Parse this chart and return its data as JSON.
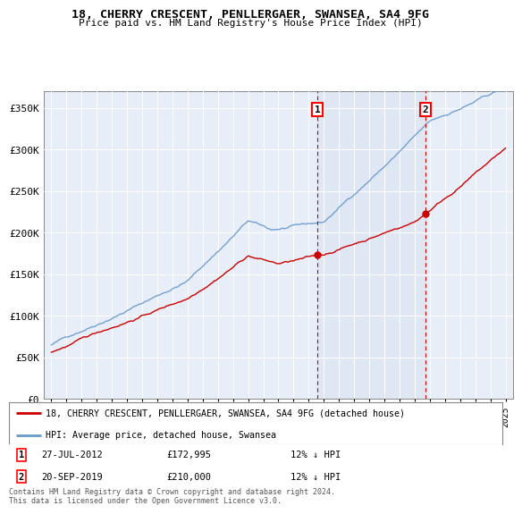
{
  "title": "18, CHERRY CRESCENT, PENLLERGAER, SWANSEA, SA4 9FG",
  "subtitle": "Price paid vs. HM Land Registry's House Price Index (HPI)",
  "bg_color": "#ffffff",
  "plot_bg": "#e8eef8",
  "grid_color": "#ffffff",
  "legend_line1": "18, CHERRY CRESCENT, PENLLERGAER, SWANSEA, SA4 9FG (detached house)",
  "legend_line2": "HPI: Average price, detached house, Swansea",
  "note": "Contains HM Land Registry data © Crown copyright and database right 2024.\nThis data is licensed under the Open Government Licence v3.0.",
  "sale1_date": "27-JUL-2012",
  "sale1_price": 172995,
  "sale1_label": "12% ↓ HPI",
  "sale2_date": "20-SEP-2019",
  "sale2_price": 210000,
  "sale2_label": "12% ↓ HPI",
  "ylim": [
    0,
    370000
  ],
  "yticks": [
    0,
    50000,
    100000,
    150000,
    200000,
    250000,
    300000,
    350000
  ],
  "ytick_labels": [
    "£0",
    "£50K",
    "£100K",
    "£150K",
    "£200K",
    "£250K",
    "£300K",
    "£350K"
  ],
  "hpi_color": "#6699cc",
  "price_color": "#cc0000",
  "marker1_x": 2012.58,
  "marker2_x": 2019.72,
  "xlim_left": 1994.5,
  "xlim_right": 2025.5
}
